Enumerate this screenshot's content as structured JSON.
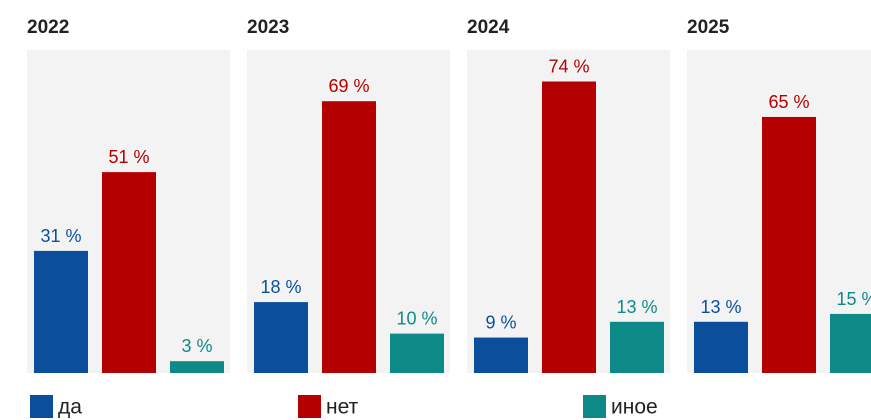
{
  "chart_data": [
    {
      "type": "bar",
      "title": "2022",
      "values": [
        31,
        51,
        3
      ],
      "value_labels": [
        "31 %",
        "51 %",
        "3 %"
      ],
      "ylim": [
        0,
        82
      ]
    },
    {
      "type": "bar",
      "title": "2023",
      "values": [
        18,
        69,
        10
      ],
      "value_labels": [
        "18 %",
        "69 %",
        "10 %"
      ],
      "ylim": [
        0,
        82
      ]
    },
    {
      "type": "bar",
      "title": "2024",
      "values": [
        9,
        74,
        13
      ],
      "value_labels": [
        "9 %",
        "74 %",
        "13 %"
      ],
      "ylim": [
        0,
        82
      ]
    },
    {
      "type": "bar",
      "title": "2025",
      "values": [
        13,
        65,
        15
      ],
      "value_labels": [
        "13 %",
        "65 %",
        "15 %"
      ],
      "ylim": [
        0,
        82
      ]
    }
  ],
  "legend": {
    "items": [
      {
        "name": "да",
        "color": "#0b4f9c"
      },
      {
        "name": "нет",
        "color": "#b40000"
      },
      {
        "name": "иное",
        "color": "#0d8a87"
      }
    ]
  }
}
